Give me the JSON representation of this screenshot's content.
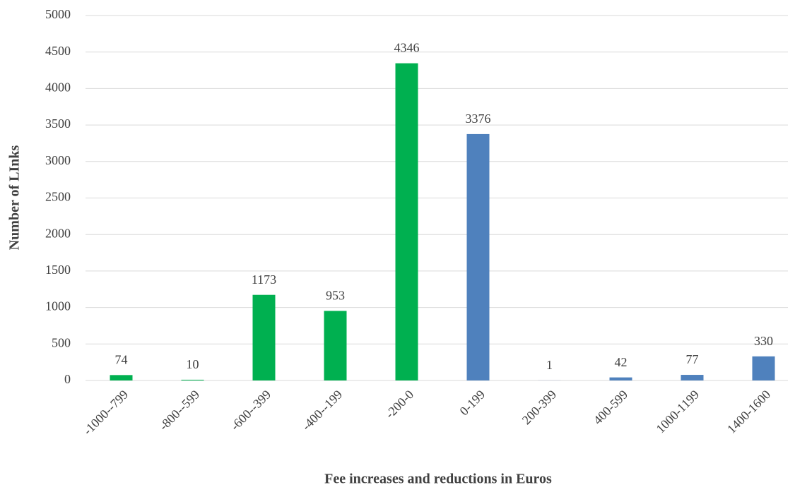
{
  "chart_data": {
    "type": "bar",
    "xlabel": "Fee increases and reductions in Euros",
    "ylabel": "Number of LInks",
    "categories": [
      "-1000--799",
      "-800--599",
      "-600--399",
      "-400--199",
      "-200-0",
      "0-199",
      "200-399",
      "400-599",
      "1000-1199",
      "1400-1600"
    ],
    "values": [
      74,
      10,
      1173,
      953,
      4346,
      3376,
      1,
      42,
      77,
      330
    ],
    "colors": [
      "#00b050",
      "#00b050",
      "#00b050",
      "#00b050",
      "#00b050",
      "#4f81bd",
      "#4f81bd",
      "#4f81bd",
      "#4f81bd",
      "#4f81bd"
    ],
    "ylim": [
      0,
      5000
    ],
    "yticks": [
      0,
      500,
      1000,
      1500,
      2000,
      2500,
      3000,
      3500,
      4000,
      4500,
      5000
    ],
    "grid": true
  }
}
